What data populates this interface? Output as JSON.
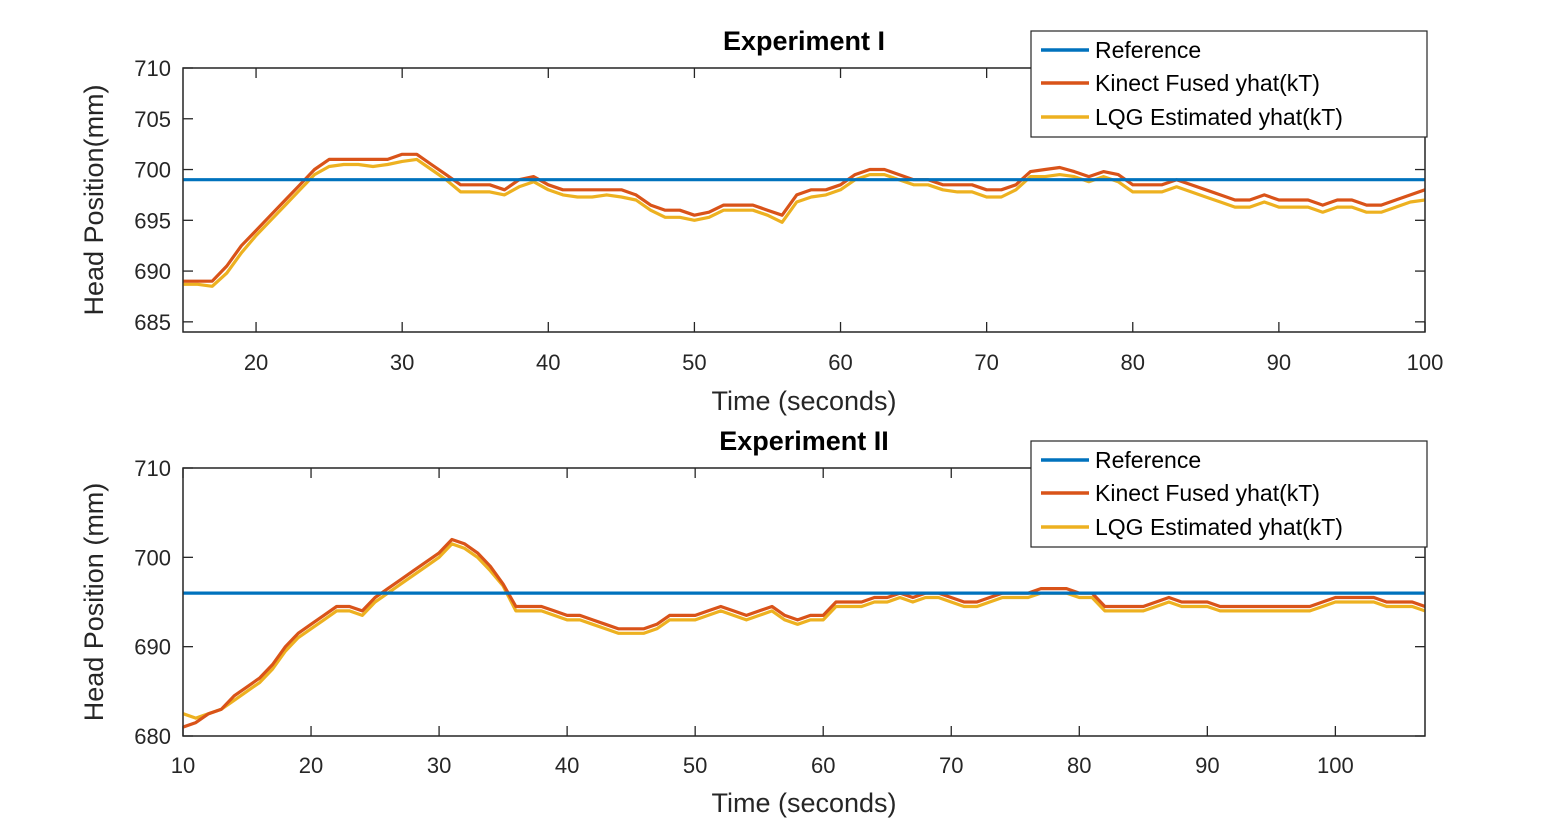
{
  "chart_data": [
    {
      "type": "line",
      "title": "Experiment I",
      "xlabel": "Time (seconds)",
      "ylabel": "Head Position(mm)",
      "xlim": [
        15,
        100
      ],
      "ylim": [
        684,
        710
      ],
      "xticks": [
        20,
        30,
        40,
        50,
        60,
        70,
        80,
        90,
        100
      ],
      "yticks": [
        685,
        690,
        695,
        700,
        705,
        710
      ],
      "grid": false,
      "legend_position": "top-right",
      "series": [
        {
          "name": "Reference",
          "color": "#0072BD",
          "x": [
            15,
            100
          ],
          "y": [
            699,
            699
          ]
        },
        {
          "name": "Kinect Fused yhat(kT)",
          "color": "#D95319",
          "x": [
            15,
            16,
            17,
            18,
            19,
            20,
            21,
            22,
            23,
            24,
            25,
            26,
            27,
            28,
            29,
            30,
            31,
            32,
            33,
            34,
            35,
            36,
            37,
            38,
            39,
            40,
            41,
            42,
            43,
            44,
            45,
            46,
            47,
            48,
            49,
            50,
            51,
            52,
            53,
            54,
            55,
            56,
            57,
            58,
            59,
            60,
            61,
            62,
            63,
            64,
            65,
            66,
            67,
            68,
            69,
            70,
            71,
            72,
            73,
            74,
            75,
            76,
            77,
            78,
            79,
            80,
            81,
            82,
            83,
            84,
            85,
            86,
            87,
            88,
            89,
            90,
            91,
            92,
            93,
            94,
            95,
            96,
            97,
            98,
            99,
            100
          ],
          "y": [
            689,
            689,
            689,
            690.5,
            692.5,
            694,
            695.5,
            697,
            698.5,
            700,
            701,
            701,
            701,
            701,
            701,
            701.5,
            701.5,
            700.5,
            699.5,
            698.5,
            698.5,
            698.5,
            698,
            699,
            699.3,
            698.5,
            698,
            698,
            698,
            698,
            698,
            697.5,
            696.5,
            696,
            696,
            695.5,
            695.8,
            696.5,
            696.5,
            696.5,
            696,
            695.5,
            697.5,
            698,
            698,
            698.5,
            699.5,
            700,
            700,
            699.5,
            699,
            699,
            698.5,
            698.5,
            698.5,
            698,
            698,
            698.5,
            699.8,
            700,
            700.2,
            699.8,
            699.3,
            699.8,
            699.5,
            698.5,
            698.5,
            698.5,
            699,
            698.5,
            698,
            697.5,
            697,
            697,
            697.5,
            697,
            697,
            697,
            696.5,
            697,
            697,
            696.5,
            696.5,
            697,
            697.5,
            698
          ]
        },
        {
          "name": "LQG Estimated yhat(kT)",
          "color": "#EDB120",
          "x": [
            15,
            16,
            17,
            18,
            19,
            20,
            21,
            22,
            23,
            24,
            25,
            26,
            27,
            28,
            29,
            30,
            31,
            32,
            33,
            34,
            35,
            36,
            37,
            38,
            39,
            40,
            41,
            42,
            43,
            44,
            45,
            46,
            47,
            48,
            49,
            50,
            51,
            52,
            53,
            54,
            55,
            56,
            57,
            58,
            59,
            60,
            61,
            62,
            63,
            64,
            65,
            66,
            67,
            68,
            69,
            70,
            71,
            72,
            73,
            74,
            75,
            76,
            77,
            78,
            79,
            80,
            81,
            82,
            83,
            84,
            85,
            86,
            87,
            88,
            89,
            90,
            91,
            92,
            93,
            94,
            95,
            96,
            97,
            98,
            99,
            100
          ],
          "y": [
            688.7,
            688.7,
            688.5,
            689.8,
            691.8,
            693.5,
            695,
            696.5,
            698,
            699.5,
            700.3,
            700.5,
            700.5,
            700.3,
            700.5,
            700.8,
            701,
            700,
            699,
            697.8,
            697.8,
            697.8,
            697.5,
            698.3,
            698.8,
            698,
            697.5,
            697.3,
            697.3,
            697.5,
            697.3,
            697,
            696,
            695.3,
            695.3,
            695,
            695.3,
            696,
            696,
            696,
            695.5,
            694.8,
            696.8,
            697.3,
            697.5,
            698,
            699,
            699.5,
            699.5,
            699,
            698.5,
            698.5,
            698,
            697.8,
            697.8,
            697.3,
            697.3,
            698,
            699.3,
            699.3,
            699.5,
            699.3,
            698.8,
            699.3,
            698.8,
            697.8,
            697.8,
            697.8,
            698.3,
            697.8,
            697.3,
            696.8,
            696.3,
            696.3,
            696.8,
            696.3,
            696.3,
            696.3,
            695.8,
            696.3,
            696.3,
            695.8,
            695.8,
            696.3,
            696.8,
            697
          ]
        }
      ]
    },
    {
      "type": "line",
      "title": "Experiment II",
      "xlabel": "Time (seconds)",
      "ylabel": "Head Position (mm)",
      "xlim": [
        10,
        107
      ],
      "ylim": [
        680,
        710
      ],
      "xticks": [
        10,
        20,
        30,
        40,
        50,
        60,
        70,
        80,
        90,
        100
      ],
      "yticks": [
        680,
        690,
        700,
        710
      ],
      "grid": false,
      "legend_position": "top-right",
      "series": [
        {
          "name": "Reference",
          "color": "#0072BD",
          "x": [
            10,
            107
          ],
          "y": [
            696,
            696
          ]
        },
        {
          "name": "Kinect Fused yhat(kT)",
          "color": "#D95319",
          "x": [
            10,
            11,
            12,
            13,
            14,
            15,
            16,
            17,
            18,
            19,
            20,
            21,
            22,
            23,
            24,
            25,
            26,
            27,
            28,
            29,
            30,
            31,
            32,
            33,
            34,
            35,
            36,
            37,
            38,
            39,
            40,
            41,
            42,
            43,
            44,
            45,
            46,
            47,
            48,
            49,
            50,
            51,
            52,
            53,
            54,
            55,
            56,
            57,
            58,
            59,
            60,
            61,
            62,
            63,
            64,
            65,
            66,
            67,
            68,
            69,
            70,
            71,
            72,
            73,
            74,
            75,
            76,
            77,
            78,
            79,
            80,
            81,
            82,
            83,
            84,
            85,
            86,
            87,
            88,
            89,
            90,
            91,
            92,
            93,
            94,
            95,
            96,
            97,
            98,
            99,
            100,
            101,
            102,
            103,
            104,
            105,
            106,
            107
          ],
          "y": [
            681,
            681.5,
            682.5,
            683,
            684.5,
            685.5,
            686.5,
            688,
            690,
            691.5,
            692.5,
            693.5,
            694.5,
            694.5,
            694,
            695.5,
            696.5,
            697.5,
            698.5,
            699.5,
            700.5,
            702,
            701.5,
            700.5,
            699,
            697,
            694.5,
            694.5,
            694.5,
            694,
            693.5,
            693.5,
            693,
            692.5,
            692,
            692,
            692,
            692.5,
            693.5,
            693.5,
            693.5,
            694,
            694.5,
            694,
            693.5,
            694,
            694.5,
            693.5,
            693,
            693.5,
            693.5,
            695,
            695,
            695,
            695.5,
            695.5,
            696,
            695.5,
            696,
            696,
            695.5,
            695,
            695,
            695.5,
            696,
            696,
            696,
            696.5,
            696.5,
            696.5,
            696,
            696,
            694.5,
            694.5,
            694.5,
            694.5,
            695,
            695.5,
            695,
            695,
            695,
            694.5,
            694.5,
            694.5,
            694.5,
            694.5,
            694.5,
            694.5,
            694.5,
            695,
            695.5,
            695.5,
            695.5,
            695.5,
            695,
            695,
            695,
            694.5
          ]
        },
        {
          "name": "LQG Estimated yhat(kT)",
          "color": "#EDB120",
          "x": [
            10,
            11,
            12,
            13,
            14,
            15,
            16,
            17,
            18,
            19,
            20,
            21,
            22,
            23,
            24,
            25,
            26,
            27,
            28,
            29,
            30,
            31,
            32,
            33,
            34,
            35,
            36,
            37,
            38,
            39,
            40,
            41,
            42,
            43,
            44,
            45,
            46,
            47,
            48,
            49,
            50,
            51,
            52,
            53,
            54,
            55,
            56,
            57,
            58,
            59,
            60,
            61,
            62,
            63,
            64,
            65,
            66,
            67,
            68,
            69,
            70,
            71,
            72,
            73,
            74,
            75,
            76,
            77,
            78,
            79,
            80,
            81,
            82,
            83,
            84,
            85,
            86,
            87,
            88,
            89,
            90,
            91,
            92,
            93,
            94,
            95,
            96,
            97,
            98,
            99,
            100,
            101,
            102,
            103,
            104,
            105,
            106,
            107
          ],
          "y": [
            682.5,
            682,
            682.5,
            683,
            684,
            685,
            686,
            687.5,
            689.5,
            691,
            692,
            693,
            694,
            694,
            693.5,
            695,
            696,
            697,
            698,
            699,
            700,
            701.5,
            701,
            700,
            698.5,
            696.8,
            694,
            694,
            694,
            693.5,
            693,
            693,
            692.5,
            692,
            691.5,
            691.5,
            691.5,
            692,
            693,
            693,
            693,
            693.5,
            694,
            693.5,
            693,
            693.5,
            694,
            693,
            692.5,
            693,
            693,
            694.5,
            694.5,
            694.5,
            695,
            695,
            695.5,
            695,
            695.5,
            695.5,
            695,
            694.5,
            694.5,
            695,
            695.5,
            695.5,
            695.5,
            696,
            696,
            696,
            695.5,
            695.5,
            694,
            694,
            694,
            694,
            694.5,
            695,
            694.5,
            694.5,
            694.5,
            694,
            694,
            694,
            694,
            694,
            694,
            694,
            694,
            694.5,
            695,
            695,
            695,
            695,
            694.5,
            694.5,
            694.5,
            694
          ]
        }
      ]
    }
  ]
}
